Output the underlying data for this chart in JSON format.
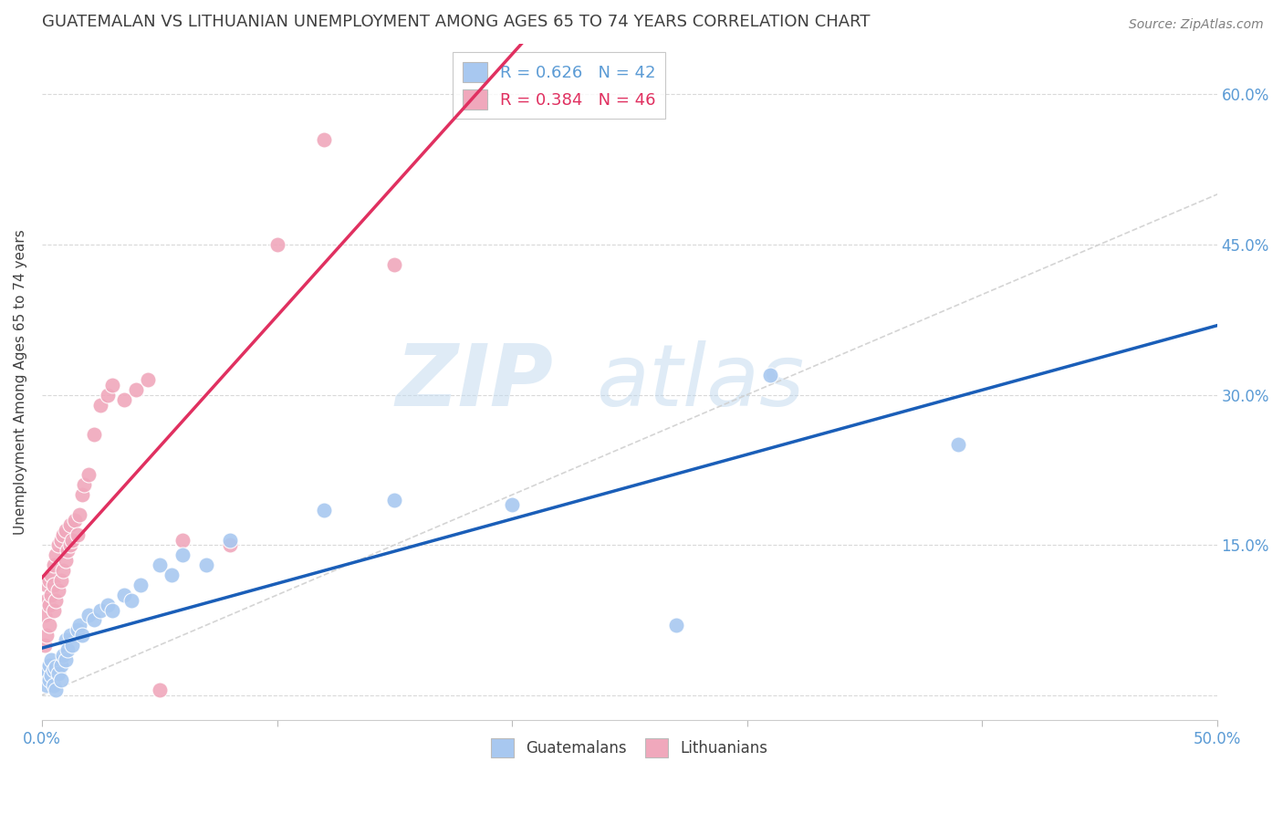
{
  "title": "GUATEMALAN VS LITHUANIAN UNEMPLOYMENT AMONG AGES 65 TO 74 YEARS CORRELATION CHART",
  "source": "Source: ZipAtlas.com",
  "ylabel": "Unemployment Among Ages 65 to 74 years",
  "xlim": [
    0.0,
    0.5
  ],
  "ylim": [
    -0.025,
    0.65
  ],
  "xtick_positions": [
    0.0,
    0.1,
    0.2,
    0.3,
    0.4,
    0.5
  ],
  "xtick_labels": [
    "0.0%",
    "",
    "",
    "",
    "",
    "50.0%"
  ],
  "ytick_positions": [
    0.0,
    0.15,
    0.3,
    0.45,
    0.6
  ],
  "ytick_labels": [
    "",
    "15.0%",
    "30.0%",
    "45.0%",
    "60.0%"
  ],
  "guatemalan_color": "#a8c8f0",
  "lithuanian_color": "#f0a8bc",
  "trendline_guatemalan_color": "#1a5eb8",
  "trendline_lithuanian_color": "#e03060",
  "diagonal_color": "#d0d0d0",
  "R_guatemalan": 0.626,
  "N_guatemalan": 42,
  "R_lithuanian": 0.384,
  "N_lithuanian": 46,
  "guatemalan_x": [
    0.001,
    0.002,
    0.002,
    0.003,
    0.003,
    0.004,
    0.004,
    0.005,
    0.005,
    0.006,
    0.006,
    0.007,
    0.008,
    0.008,
    0.009,
    0.01,
    0.01,
    0.011,
    0.012,
    0.013,
    0.015,
    0.016,
    0.017,
    0.02,
    0.022,
    0.025,
    0.028,
    0.03,
    0.035,
    0.038,
    0.042,
    0.05,
    0.055,
    0.06,
    0.07,
    0.08,
    0.12,
    0.15,
    0.2,
    0.27,
    0.31,
    0.39
  ],
  "guatemalan_y": [
    0.02,
    0.01,
    0.025,
    0.015,
    0.03,
    0.02,
    0.035,
    0.025,
    0.01,
    0.028,
    0.005,
    0.022,
    0.03,
    0.015,
    0.04,
    0.035,
    0.055,
    0.045,
    0.06,
    0.05,
    0.065,
    0.07,
    0.06,
    0.08,
    0.075,
    0.085,
    0.09,
    0.085,
    0.1,
    0.095,
    0.11,
    0.13,
    0.12,
    0.14,
    0.13,
    0.155,
    0.185,
    0.195,
    0.19,
    0.07,
    0.32,
    0.25
  ],
  "lithuanian_x": [
    0.001,
    0.001,
    0.002,
    0.002,
    0.002,
    0.003,
    0.003,
    0.003,
    0.004,
    0.004,
    0.005,
    0.005,
    0.005,
    0.006,
    0.006,
    0.007,
    0.007,
    0.008,
    0.008,
    0.009,
    0.009,
    0.01,
    0.01,
    0.011,
    0.012,
    0.012,
    0.013,
    0.014,
    0.015,
    0.016,
    0.017,
    0.018,
    0.02,
    0.022,
    0.025,
    0.028,
    0.03,
    0.035,
    0.04,
    0.045,
    0.05,
    0.06,
    0.08,
    0.1,
    0.12,
    0.15
  ],
  "lithuanian_y": [
    0.05,
    0.08,
    0.06,
    0.095,
    0.11,
    0.07,
    0.09,
    0.115,
    0.1,
    0.12,
    0.085,
    0.11,
    0.13,
    0.095,
    0.14,
    0.105,
    0.15,
    0.115,
    0.155,
    0.125,
    0.16,
    0.135,
    0.165,
    0.145,
    0.15,
    0.17,
    0.155,
    0.175,
    0.16,
    0.18,
    0.2,
    0.21,
    0.22,
    0.26,
    0.29,
    0.3,
    0.31,
    0.295,
    0.305,
    0.315,
    0.005,
    0.155,
    0.15,
    0.45,
    0.555,
    0.43
  ],
  "watermark_zip": "ZIP",
  "watermark_atlas": "atlas",
  "background_color": "#ffffff",
  "grid_color": "#d0d0d0",
  "tick_label_color": "#5b9bd5",
  "title_color": "#404040",
  "source_color": "#808080"
}
